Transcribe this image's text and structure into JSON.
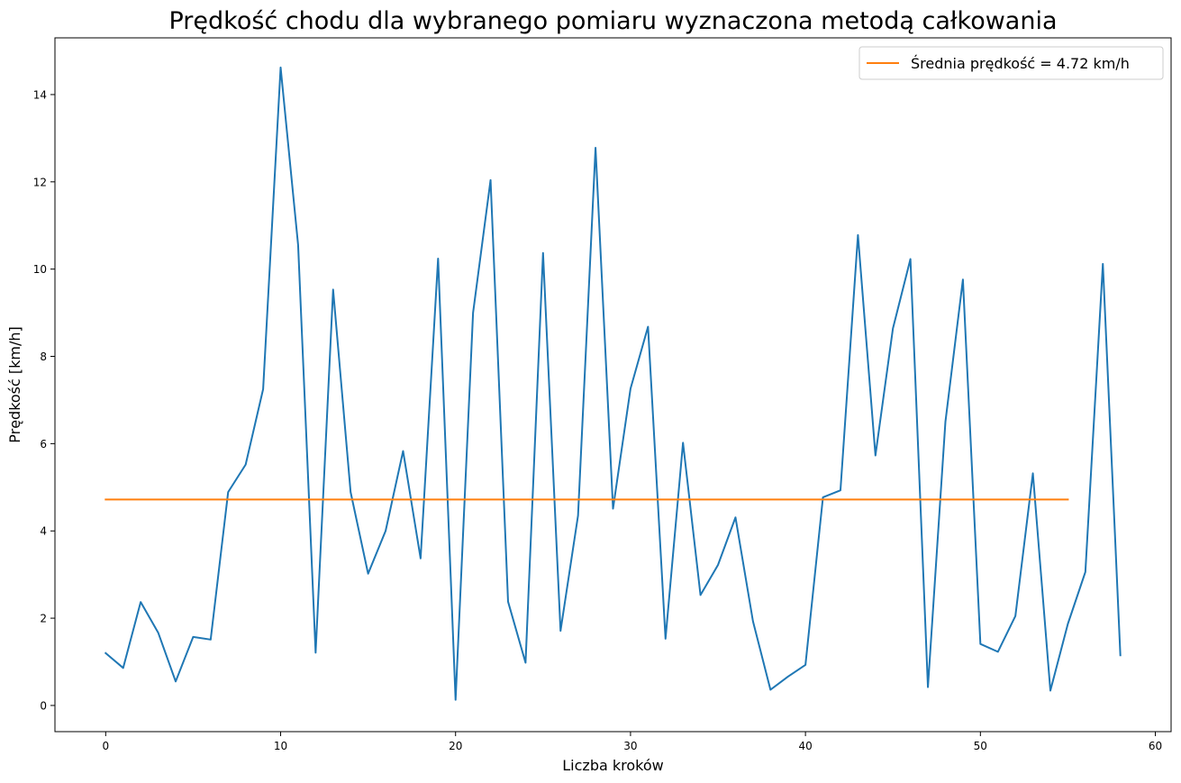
{
  "chart_data": {
    "type": "line",
    "title": "Prędkość chodu dla wybranego pomiaru wyznaczona metodą całkowania",
    "xlabel": "Liczba kroków",
    "ylabel": "Prędkość [km/h]",
    "xlim": [
      -2.9,
      60.9
    ],
    "ylim": [
      -0.6,
      15.3
    ],
    "xticks": [
      0,
      10,
      20,
      30,
      40,
      50,
      60
    ],
    "yticks": [
      0,
      2,
      4,
      6,
      8,
      10,
      12,
      14
    ],
    "grid": false,
    "legend_position": "top-right",
    "series": [
      {
        "name": "",
        "color": "#1f77b4",
        "x": [
          0,
          1,
          2,
          3,
          4,
          5,
          6,
          7,
          8,
          9,
          10,
          11,
          12,
          13,
          14,
          15,
          16,
          17,
          18,
          19,
          20,
          21,
          22,
          23,
          24,
          25,
          26,
          27,
          28,
          29,
          30,
          31,
          32,
          33,
          34,
          35,
          36,
          37,
          38,
          39,
          40,
          41,
          42,
          43,
          44,
          45,
          46,
          47,
          48,
          49,
          50,
          51,
          52,
          53,
          54,
          55,
          56,
          57,
          58
        ],
        "values": [
          1.2,
          0.86,
          2.37,
          1.67,
          0.55,
          1.57,
          1.51,
          4.89,
          5.52,
          7.25,
          14.62,
          10.55,
          1.21,
          9.53,
          4.89,
          3.02,
          4.0,
          5.83,
          3.37,
          10.24,
          0.13,
          9.0,
          12.04,
          2.38,
          0.98,
          10.37,
          1.71,
          4.35,
          12.78,
          4.51,
          7.26,
          8.68,
          1.53,
          6.02,
          2.53,
          3.22,
          4.31,
          1.93,
          0.36,
          0.66,
          0.93,
          4.77,
          4.93,
          10.78,
          5.73,
          8.64,
          10.23,
          0.42,
          6.5,
          9.76,
          1.41,
          1.23,
          2.05,
          5.32,
          0.34,
          1.87,
          3.06,
          10.12,
          1.15
        ]
      },
      {
        "name": "Średnia prędkość = 4.72 km/h",
        "color": "#ff7f0e",
        "x": [
          0,
          55
        ],
        "values": [
          4.72,
          4.72
        ]
      }
    ]
  }
}
